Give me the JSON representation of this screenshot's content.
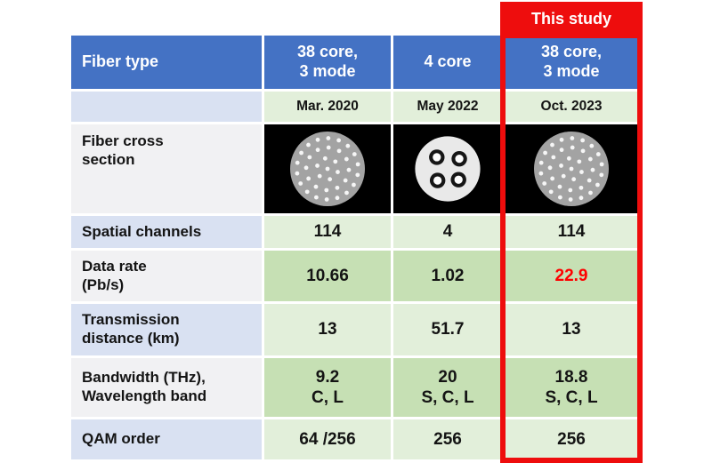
{
  "colors": {
    "header_blue": "#4472c4",
    "label_lavender": "#d9e1f2",
    "label_gray": "#f1f1f3",
    "cell_light_green": "#e2efda",
    "cell_medium_green": "#c6e0b4",
    "accent_red": "#ee0d0d",
    "highlight_text_red": "#fe0000",
    "image_background": "#000000",
    "header_text": "#ffffff",
    "body_text": "#141414"
  },
  "callout": {
    "label": "This study"
  },
  "table": {
    "header_label": "Fiber type",
    "header_cols": [
      "38 core,\n3 mode",
      "4 core",
      "38 core,\n3 mode"
    ],
    "date_cols": [
      "Mar. 2020",
      "May 2022",
      "Oct. 2023"
    ],
    "cross_section": {
      "label": "Fiber cross\nsection",
      "images": [
        {
          "kind": "multicore",
          "name": "38-core 3-mode fiber cross section"
        },
        {
          "kind": "fourcore",
          "name": "4-core fiber cross section"
        },
        {
          "kind": "multicore",
          "name": "38-core 3-mode fiber cross section"
        }
      ]
    },
    "rows": [
      {
        "label": "Spatial channels",
        "values": [
          "114",
          "4",
          "114"
        ]
      },
      {
        "label": "Data rate\n(Pb/s)",
        "values": [
          "10.66",
          "1.02",
          "22.9"
        ],
        "highlight_col": 2
      },
      {
        "label": "Transmission\ndistance (km)",
        "values": [
          "13",
          "51.7",
          "13"
        ]
      },
      {
        "label": "Bandwidth (THz),\nWavelength band",
        "values": [
          "9.2\nC, L",
          "20\nS, C, L",
          "18.8\nS, C, L"
        ]
      },
      {
        "label": "QAM order",
        "values": [
          "64 /256",
          "256",
          "256"
        ]
      }
    ]
  },
  "chart_data": {
    "type": "table",
    "title": "This study",
    "columns": [
      "Fiber type",
      "38 core, 3 mode",
      "4 core",
      "38 core, 3 mode"
    ],
    "column_dates": [
      "",
      "Mar. 2020",
      "May 2022",
      "Oct. 2023"
    ],
    "rows": [
      [
        "Fiber cross section",
        "38-core fiber image",
        "4-core fiber image",
        "38-core fiber image"
      ],
      [
        "Spatial channels",
        "114",
        "4",
        "114"
      ],
      [
        "Data rate (Pb/s)",
        "10.66",
        "1.02",
        "22.9"
      ],
      [
        "Transmission distance (km)",
        "13",
        "51.7",
        "13"
      ],
      [
        "Bandwidth (THz), Wavelength band",
        "9.2 C, L",
        "20 S, C, L",
        "18.8 S, C, L"
      ],
      [
        "QAM order",
        "64 /256",
        "256",
        "256"
      ]
    ],
    "highlight": {
      "row": "Data rate (Pb/s)",
      "column": "38 core, 3 mode (Oct. 2023)",
      "value": "22.9",
      "color": "red"
    },
    "layout_hints": {
      "highlighted_column_framed_red": true,
      "header_fill": "blue",
      "banded_green_rows": true
    }
  }
}
